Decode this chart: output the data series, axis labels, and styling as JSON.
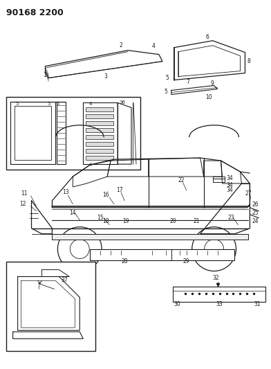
{
  "title": "90168 2200",
  "bg": "#ffffff",
  "lc": "#1a1a1a",
  "fig_w": 3.92,
  "fig_h": 5.33,
  "dpi": 100
}
